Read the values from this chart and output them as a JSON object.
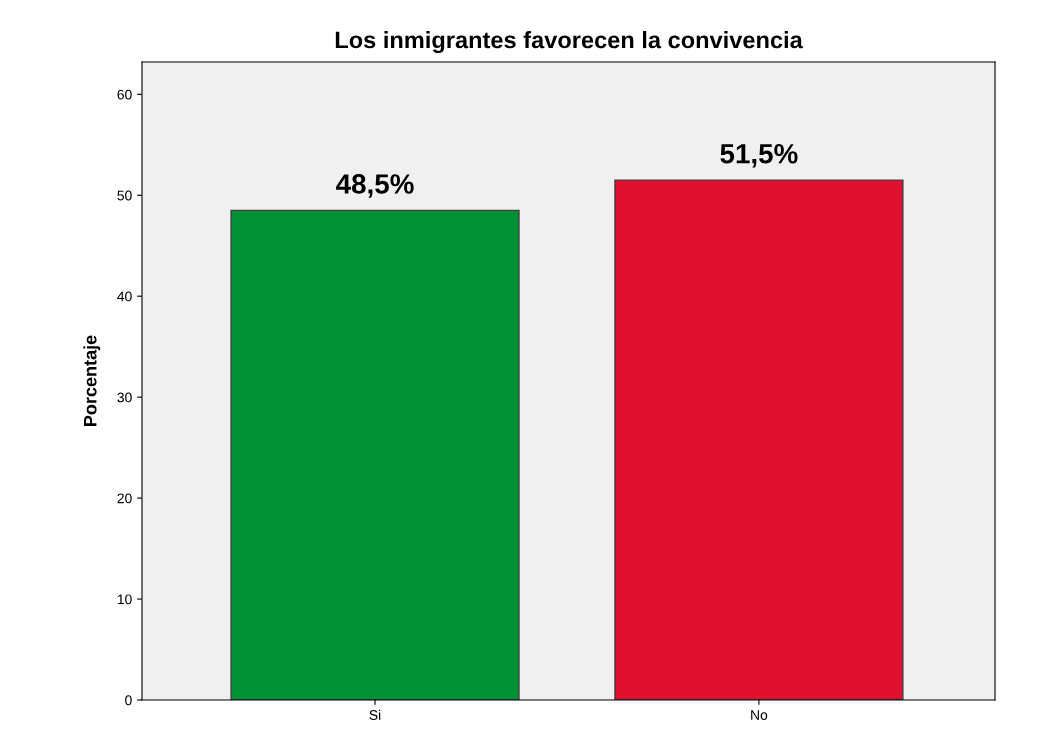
{
  "chart_data": {
    "type": "bar",
    "title": "Los inmigrantes favorecen la convivencia",
    "ylabel": "Porcentaje",
    "categories": [
      "Si",
      "No"
    ],
    "values": [
      48.5,
      51.5
    ],
    "colors": [
      "#009136",
      "#e01030"
    ],
    "value_labels": [
      "48,5%",
      "51,5%"
    ],
    "ylim": [
      0,
      63.2
    ],
    "yticks": [
      0,
      10,
      20,
      30,
      40,
      50,
      60
    ],
    "grid": false
  }
}
